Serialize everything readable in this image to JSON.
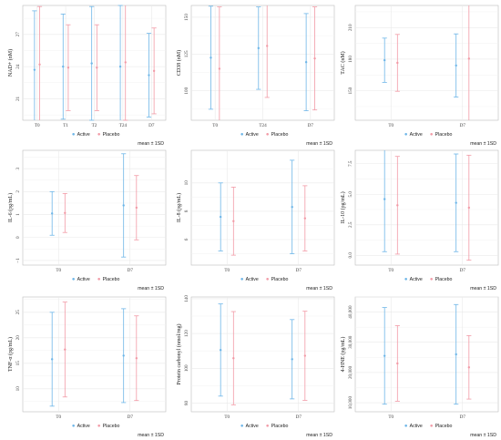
{
  "colors": {
    "active": "#6EB6E8",
    "placebo": "#F29AA6",
    "grid": "#E9E9E9",
    "panel_border": "#BDBDBD"
  },
  "legend": {
    "active": "Active",
    "placebo": "Placebo",
    "note": "mean ± 1SD"
  },
  "chart_data": [
    {
      "type": "errorbar",
      "ylabel": "NAD+ (nM)",
      "categories": [
        "T0",
        "T1",
        "T2",
        "T24",
        "D7"
      ],
      "ylim": [
        19,
        29.7
      ],
      "yticks": [
        21,
        24,
        27
      ],
      "ytick_labels": [
        "21",
        "24",
        "27"
      ],
      "grid": true,
      "series": [
        {
          "name": "Active",
          "mean": [
            23.7,
            24.0,
            24.3,
            24.0,
            23.2
          ],
          "sd": [
            5.5,
            4.9,
            5.3,
            5.7,
            3.9
          ]
        },
        {
          "name": "Placebo",
          "mean": [
            24.2,
            23.9,
            23.9,
            24.4,
            23.6
          ],
          "sd": [
            5.4,
            4.0,
            4.0,
            5.4,
            4.0
          ]
        }
      ]
    },
    {
      "type": "errorbar",
      "ylabel": "CD38 (nM)",
      "categories": [
        "T0",
        "T24",
        "D7"
      ],
      "ylim": [
        80,
        158
      ],
      "yticks": [
        100,
        125,
        150
      ],
      "ytick_labels": [
        "100",
        "125",
        "150"
      ],
      "grid": true,
      "series": [
        {
          "name": "Active",
          "mean": [
            122.5,
            129,
            119.5
          ],
          "sd": [
            35,
            28,
            33
          ]
        },
        {
          "name": "Placebo",
          "mean": [
            115,
            130.5,
            122
          ],
          "sd": [
            42,
            35,
            35
          ]
        }
      ]
    },
    {
      "type": "errorbar",
      "ylabel": "TAC (nM)",
      "categories": [
        "T0",
        "D7"
      ],
      "ylim": [
        122,
        231
      ],
      "yticks": [
        150,
        180,
        210
      ],
      "ytick_labels": [
        "150",
        "180",
        "210"
      ],
      "grid": true,
      "series": [
        {
          "name": "Active",
          "mean": [
            179,
            174
          ],
          "sd": [
            21,
            30
          ]
        },
        {
          "name": "Placebo",
          "mean": [
            176.5,
            180.5
          ],
          "sd": [
            27,
            60
          ]
        }
      ]
    },
    {
      "type": "errorbar",
      "ylabel": "IL-6 (pg/mL)",
      "categories": [
        "T0",
        "D7"
      ],
      "ylim": [
        -1.2,
        3.8
      ],
      "yticks": [
        -1,
        0,
        1,
        2,
        3
      ],
      "ytick_labels": [
        "−1",
        "0",
        "1",
        "2",
        "3"
      ],
      "grid": true,
      "series": [
        {
          "name": "Active",
          "mean": [
            1.05,
            1.4
          ],
          "sd": [
            0.95,
            2.25
          ]
        },
        {
          "name": "Placebo",
          "mean": [
            1.07,
            1.3
          ],
          "sd": [
            0.85,
            1.4
          ]
        }
      ]
    },
    {
      "type": "errorbar",
      "ylabel": "IL-8 (pg/mL)",
      "categories": [
        "T0",
        "D7"
      ],
      "ylim": [
        4.2,
        12.3
      ],
      "yticks": [
        6,
        8,
        10
      ],
      "ytick_labels": [
        "6",
        "8",
        "10"
      ],
      "grid": true,
      "series": [
        {
          "name": "Active",
          "mean": [
            7.6,
            8.3
          ],
          "sd": [
            2.4,
            3.3
          ]
        },
        {
          "name": "Placebo",
          "mean": [
            7.3,
            7.5
          ],
          "sd": [
            2.4,
            2.3
          ]
        }
      ]
    },
    {
      "type": "errorbar",
      "ylabel": "IL-10 (pg/mL)",
      "categories": [
        "T0",
        "D7"
      ],
      "ylim": [
        -0.8,
        8.6
      ],
      "yticks": [
        0,
        2.5,
        5,
        7.5
      ],
      "ytick_labels": [
        "0.0",
        "2.5",
        "5.0",
        "7.5"
      ],
      "grid": true,
      "series": [
        {
          "name": "Active",
          "mean": [
            4.6,
            4.3
          ],
          "sd": [
            4.3,
            4.0
          ]
        },
        {
          "name": "Placebo",
          "mean": [
            4.1,
            3.9
          ],
          "sd": [
            4.0,
            4.3
          ]
        }
      ]
    },
    {
      "type": "errorbar",
      "ylabel": "TNF-α (pg/mL)",
      "categories": [
        "T0",
        "D7"
      ],
      "ylim": [
        5.5,
        28
      ],
      "yticks": [
        10,
        15,
        20,
        25
      ],
      "ytick_labels": [
        "10",
        "15",
        "20",
        "25"
      ],
      "grid": true,
      "series": [
        {
          "name": "Active",
          "mean": [
            15.8,
            16.5
          ],
          "sd": [
            9.2,
            9.2
          ]
        },
        {
          "name": "Placebo",
          "mean": [
            17.7,
            16.0
          ],
          "sd": [
            9.3,
            8.3
          ]
        }
      ]
    },
    {
      "type": "errorbar",
      "ylabel": "Protein carbonyl (nmol/mg)",
      "categories": [
        "T0",
        "D7"
      ],
      "ylim": [
        75,
        141
      ],
      "yticks": [
        80,
        100,
        120,
        140
      ],
      "ytick_labels": [
        "80",
        "100",
        "120",
        "140"
      ],
      "grid": true,
      "series": [
        {
          "name": "Active",
          "mean": [
            110.5,
            105.2
          ],
          "sd": [
            26.5,
            22.8
          ]
        },
        {
          "name": "Placebo",
          "mean": [
            105.8,
            107.2
          ],
          "sd": [
            26.8,
            25.6
          ]
        }
      ]
    },
    {
      "type": "errorbar",
      "ylabel": "4-HNE (pg/mL)",
      "categories": [
        "T0",
        "D7"
      ],
      "ylim": [
        7000,
        45000
      ],
      "yticks": [
        10000,
        20000,
        30000,
        40000
      ],
      "ytick_labels": [
        "10,000",
        "20,000",
        "30,000",
        "40,000"
      ],
      "grid": true,
      "series": [
        {
          "name": "Active",
          "mean": [
            25500,
            26000
          ],
          "sd": [
            16000,
            16500
          ]
        },
        {
          "name": "Placebo",
          "mean": [
            23000,
            21700
          ],
          "sd": [
            12500,
            10500
          ]
        }
      ]
    }
  ]
}
